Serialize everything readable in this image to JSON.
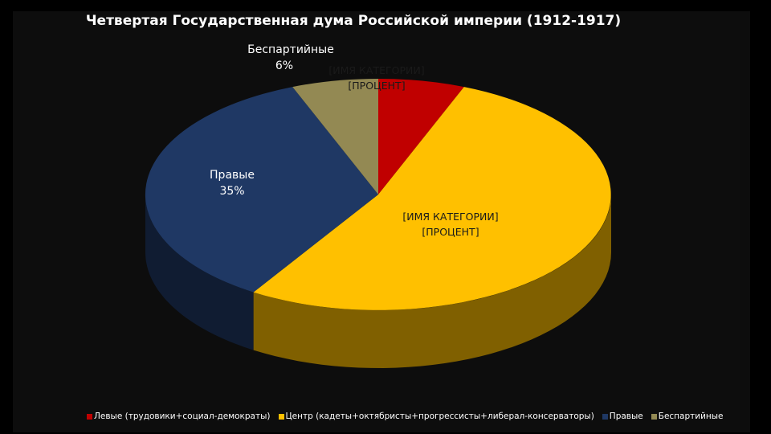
{
  "chart_data": {
    "type": "pie",
    "style": "3d",
    "title": "Четвертая Государственная дума Российской империи (1912-1917)",
    "categories": [
      "Левые (трудовики+социал-демократы)",
      "Центр (кадеты+октябристы+прогрессисты+либерал-консерваторы)",
      "Правые",
      "Беспартийные"
    ],
    "values": [
      6,
      53,
      35,
      6
    ],
    "unit": "%",
    "colors": [
      "#C00000",
      "#FFC000",
      "#1F3864",
      "#938953"
    ],
    "data_labels": [
      {
        "line1": "[ИМЯ КАТЕГОРИИ]",
        "line2": "[ПРОЦЕНТ]"
      },
      {
        "line1": "[ИМЯ КАТЕГОРИИ]",
        "line2": "[ПРОЦЕНТ]"
      },
      {
        "line1": "Правые",
        "line2": "35%"
      },
      {
        "line1": "Беспартийные",
        "line2": "6%"
      }
    ],
    "legend_position": "bottom"
  }
}
